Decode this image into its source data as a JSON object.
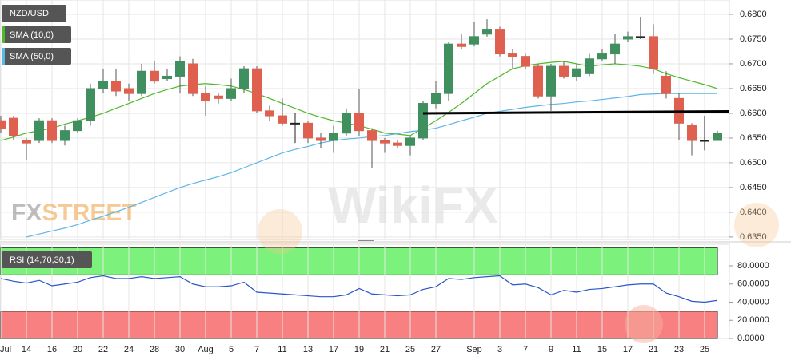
{
  "chart_data": {
    "type": "candlestick",
    "legend": [
      "NZD/USD",
      "SMA (10,0)",
      "SMA (50,0)"
    ],
    "brand": [
      "FX",
      "STREET"
    ],
    "watermark": "WikiFX",
    "categories": [
      "Jul",
      null,
      "14",
      null,
      "16",
      null,
      "20",
      null,
      "22",
      null,
      "24",
      null,
      "28",
      null,
      "30",
      null,
      "Aug",
      null,
      "5",
      null,
      "7",
      null,
      "11",
      null,
      "13",
      null,
      "17",
      null,
      "19",
      null,
      "21",
      null,
      "25",
      null,
      "27",
      null,
      null,
      "Sep",
      null,
      "3",
      null,
      "7",
      null,
      "9",
      null,
      "11",
      null,
      "15",
      null,
      "17",
      null,
      "21",
      null,
      "23",
      null,
      "25",
      null
    ],
    "open": [
      0.6585,
      0.659,
      0.6545,
      0.6545,
      0.6585,
      0.6545,
      0.6565,
      0.6585,
      0.665,
      0.6665,
      0.665,
      0.664,
      0.6685,
      0.667,
      0.6675,
      0.67,
      0.664,
      0.6635,
      0.663,
      0.665,
      0.669,
      0.6605,
      0.6595,
      0.658,
      0.658,
      0.655,
      0.6545,
      0.656,
      0.66,
      0.6565,
      0.6545,
      0.654,
      0.6535,
      0.655,
      0.662,
      0.664,
      0.674,
      0.674,
      0.676,
      0.677,
      0.672,
      0.6715,
      0.6695,
      0.6635,
      0.6695,
      0.6675,
      0.668,
      0.671,
      0.672,
      0.675,
      0.6755,
      0.6755,
      0.6675,
      0.663,
      0.6575,
      0.6545,
      0.6545
    ],
    "high": [
      0.6595,
      0.6595,
      0.655,
      0.659,
      0.659,
      0.6575,
      0.659,
      0.666,
      0.669,
      0.669,
      0.666,
      0.67,
      0.6705,
      0.669,
      0.6715,
      0.671,
      0.6655,
      0.664,
      0.667,
      0.6695,
      0.6695,
      0.6615,
      0.663,
      0.66,
      0.6585,
      0.656,
      0.6575,
      0.661,
      0.665,
      0.657,
      0.655,
      0.6545,
      0.6555,
      0.6625,
      0.6665,
      0.6745,
      0.676,
      0.6785,
      0.679,
      0.6775,
      0.673,
      0.672,
      0.67,
      0.67,
      0.6705,
      0.67,
      0.672,
      0.673,
      0.676,
      0.6765,
      0.6795,
      0.678,
      0.6685,
      0.664,
      0.658,
      0.6595,
      0.6565
    ],
    "low": [
      0.656,
      0.6545,
      0.6505,
      0.654,
      0.654,
      0.6535,
      0.656,
      0.6575,
      0.664,
      0.6635,
      0.6625,
      0.6635,
      0.666,
      0.6665,
      0.664,
      0.6635,
      0.6595,
      0.662,
      0.6625,
      0.664,
      0.66,
      0.6585,
      0.6575,
      0.654,
      0.654,
      0.653,
      0.652,
      0.6555,
      0.6555,
      0.649,
      0.652,
      0.653,
      0.6515,
      0.6545,
      0.661,
      0.6625,
      0.673,
      0.6735,
      0.6755,
      0.6715,
      0.669,
      0.669,
      0.663,
      0.6605,
      0.667,
      0.6665,
      0.6675,
      0.6705,
      0.67,
      0.6745,
      0.675,
      0.668,
      0.663,
      0.6545,
      0.6515,
      0.6525,
      0.6545
    ],
    "close": [
      0.657,
      0.6555,
      0.654,
      0.6585,
      0.6545,
      0.6565,
      0.6585,
      0.665,
      0.6665,
      0.6645,
      0.664,
      0.6685,
      0.6665,
      0.6675,
      0.6705,
      0.664,
      0.6625,
      0.663,
      0.665,
      0.669,
      0.6605,
      0.6595,
      0.658,
      0.658,
      0.655,
      0.6545,
      0.656,
      0.66,
      0.6565,
      0.6545,
      0.654,
      0.6535,
      0.655,
      0.662,
      0.664,
      0.674,
      0.6735,
      0.6755,
      0.677,
      0.672,
      0.6715,
      0.6695,
      0.6635,
      0.6695,
      0.6675,
      0.669,
      0.671,
      0.672,
      0.674,
      0.6755,
      0.6755,
      0.669,
      0.664,
      0.658,
      0.6545,
      0.6545,
      0.656
    ],
    "up_color": "#3f8f5f",
    "down_color": "#e0604f",
    "series": [
      {
        "name": "SMA (10,0)",
        "color": "#4db82a",
        "values": [
          0.6545,
          0.6552,
          0.656,
          0.6565,
          0.657,
          0.6578,
          0.6585,
          0.6592,
          0.66,
          0.661,
          0.662,
          0.663,
          0.664,
          0.6648,
          0.6655,
          0.6658,
          0.666,
          0.6658,
          0.6655,
          0.6648,
          0.664,
          0.663,
          0.662,
          0.661,
          0.66,
          0.6592,
          0.6585,
          0.658,
          0.6575,
          0.6568,
          0.656,
          0.6558,
          0.6555,
          0.657,
          0.6585,
          0.6602,
          0.662,
          0.664,
          0.666,
          0.6675,
          0.669,
          0.6696,
          0.67,
          0.6703,
          0.6705,
          0.67,
          0.6695,
          0.6698,
          0.67,
          0.6698,
          0.6695,
          0.669,
          0.668,
          0.6672,
          0.6665,
          0.6658,
          0.665
        ]
      },
      {
        "name": "SMA (50,0)",
        "color": "#5db6e8",
        "values": [
          null,
          null,
          0.635,
          0.6356,
          0.6362,
          0.6368,
          0.6375,
          0.6384,
          0.6392,
          0.6401,
          0.641,
          0.642,
          0.643,
          0.644,
          0.645,
          0.6458,
          0.6465,
          0.6472,
          0.648,
          0.649,
          0.65,
          0.651,
          0.652,
          0.6527,
          0.6533,
          0.654,
          0.6545,
          0.6548,
          0.655,
          0.6553,
          0.6555,
          0.6559,
          0.6563,
          0.6566,
          0.657,
          0.6577,
          0.6585,
          0.6592,
          0.66,
          0.6604,
          0.6608,
          0.6612,
          0.6615,
          0.6618,
          0.662,
          0.6623,
          0.6625,
          0.6628,
          0.6631,
          0.6634,
          0.6638,
          0.6639,
          0.664,
          0.664,
          0.664,
          0.664,
          0.664
        ]
      }
    ],
    "trendline_values": [
      0.66,
      0.6604
    ],
    "ylim": [
      0.6345,
      0.6829
    ],
    "yticks": [
      {
        "value": 0.68,
        "label": "0.6800"
      },
      {
        "value": 0.675,
        "label": "0.6750"
      },
      {
        "value": 0.67,
        "label": "0.6700"
      },
      {
        "value": 0.665,
        "label": "0.6650"
      },
      {
        "value": 0.66,
        "label": "0.6600"
      },
      {
        "value": 0.655,
        "label": "0.6550"
      },
      {
        "value": 0.65,
        "label": "0.6500"
      },
      {
        "value": 0.645,
        "label": "0.6450"
      },
      {
        "value": 0.64,
        "label": "0.6400"
      },
      {
        "value": 0.635,
        "label": "0.6350"
      }
    ],
    "rsi": {
      "name": "RSI (14,70,30,1)",
      "color": "#2a55cc",
      "values": [
        66,
        63,
        61,
        64,
        58,
        60,
        62,
        67,
        69,
        66,
        66,
        68,
        66,
        67,
        68,
        60,
        57,
        57,
        58,
        62,
        51,
        50,
        49,
        48,
        47,
        46,
        46,
        48,
        55,
        49,
        48,
        47,
        48,
        54,
        57,
        66,
        65,
        67,
        68,
        69,
        59,
        60,
        56,
        48,
        53,
        51,
        54,
        55,
        57,
        59,
        60,
        60,
        50,
        46,
        41,
        40,
        42
      ],
      "overbought": [
        70,
        100
      ],
      "oversold": [
        0,
        30
      ],
      "ylim": [
        0,
        100
      ],
      "yticks": [
        {
          "value": 80,
          "label": "80.0000"
        },
        {
          "value": 60,
          "label": "60.0000"
        },
        {
          "value": 40,
          "label": "40.0000"
        },
        {
          "value": 20,
          "label": "20.0000"
        },
        {
          "value": 0,
          "label": "0.0000"
        }
      ]
    },
    "grid": true
  }
}
